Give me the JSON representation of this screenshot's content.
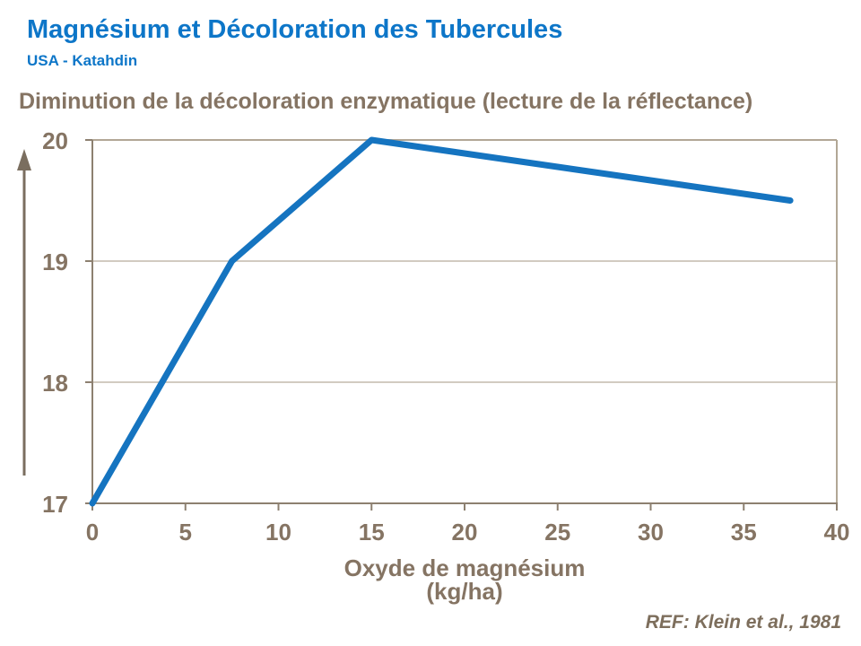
{
  "header": {
    "title": "Magnésium et Décoloration des Tubercules",
    "subtitle": "USA - Katahdin"
  },
  "footer": {
    "reference": "REF: Klein et al., 1981"
  },
  "colors": {
    "background": "#ffffff",
    "heading_blue": "#0d76c8",
    "line_blue": "#1574c0",
    "text_brown": "#857463",
    "text_brown_dark": "#7d6e5c",
    "axis": "#8d8070",
    "plot_border": "#b2a796",
    "gridline": "#b6ac9c",
    "arrow": "#7a6e5f"
  },
  "chart_data": {
    "type": "line",
    "title": "Diminution de la décoloration enzymatique (lecture de la réflectance)",
    "xlabel_line1": "Oxyde de magnésium",
    "xlabel_line2": "(kg/ha)",
    "series": [
      {
        "x": [
          0,
          7.5,
          15,
          37.5
        ],
        "y": [
          17,
          19,
          20,
          19.5
        ]
      }
    ],
    "xlim": [
      0,
      40
    ],
    "ylim": [
      17,
      20
    ],
    "x_ticks": [
      0,
      5,
      10,
      15,
      20,
      25,
      30,
      35,
      40
    ],
    "y_ticks": [
      17,
      18,
      19,
      20
    ],
    "grid": "horizontal-only",
    "legend": "none",
    "y_axis_annotation": "upward-arrow"
  }
}
